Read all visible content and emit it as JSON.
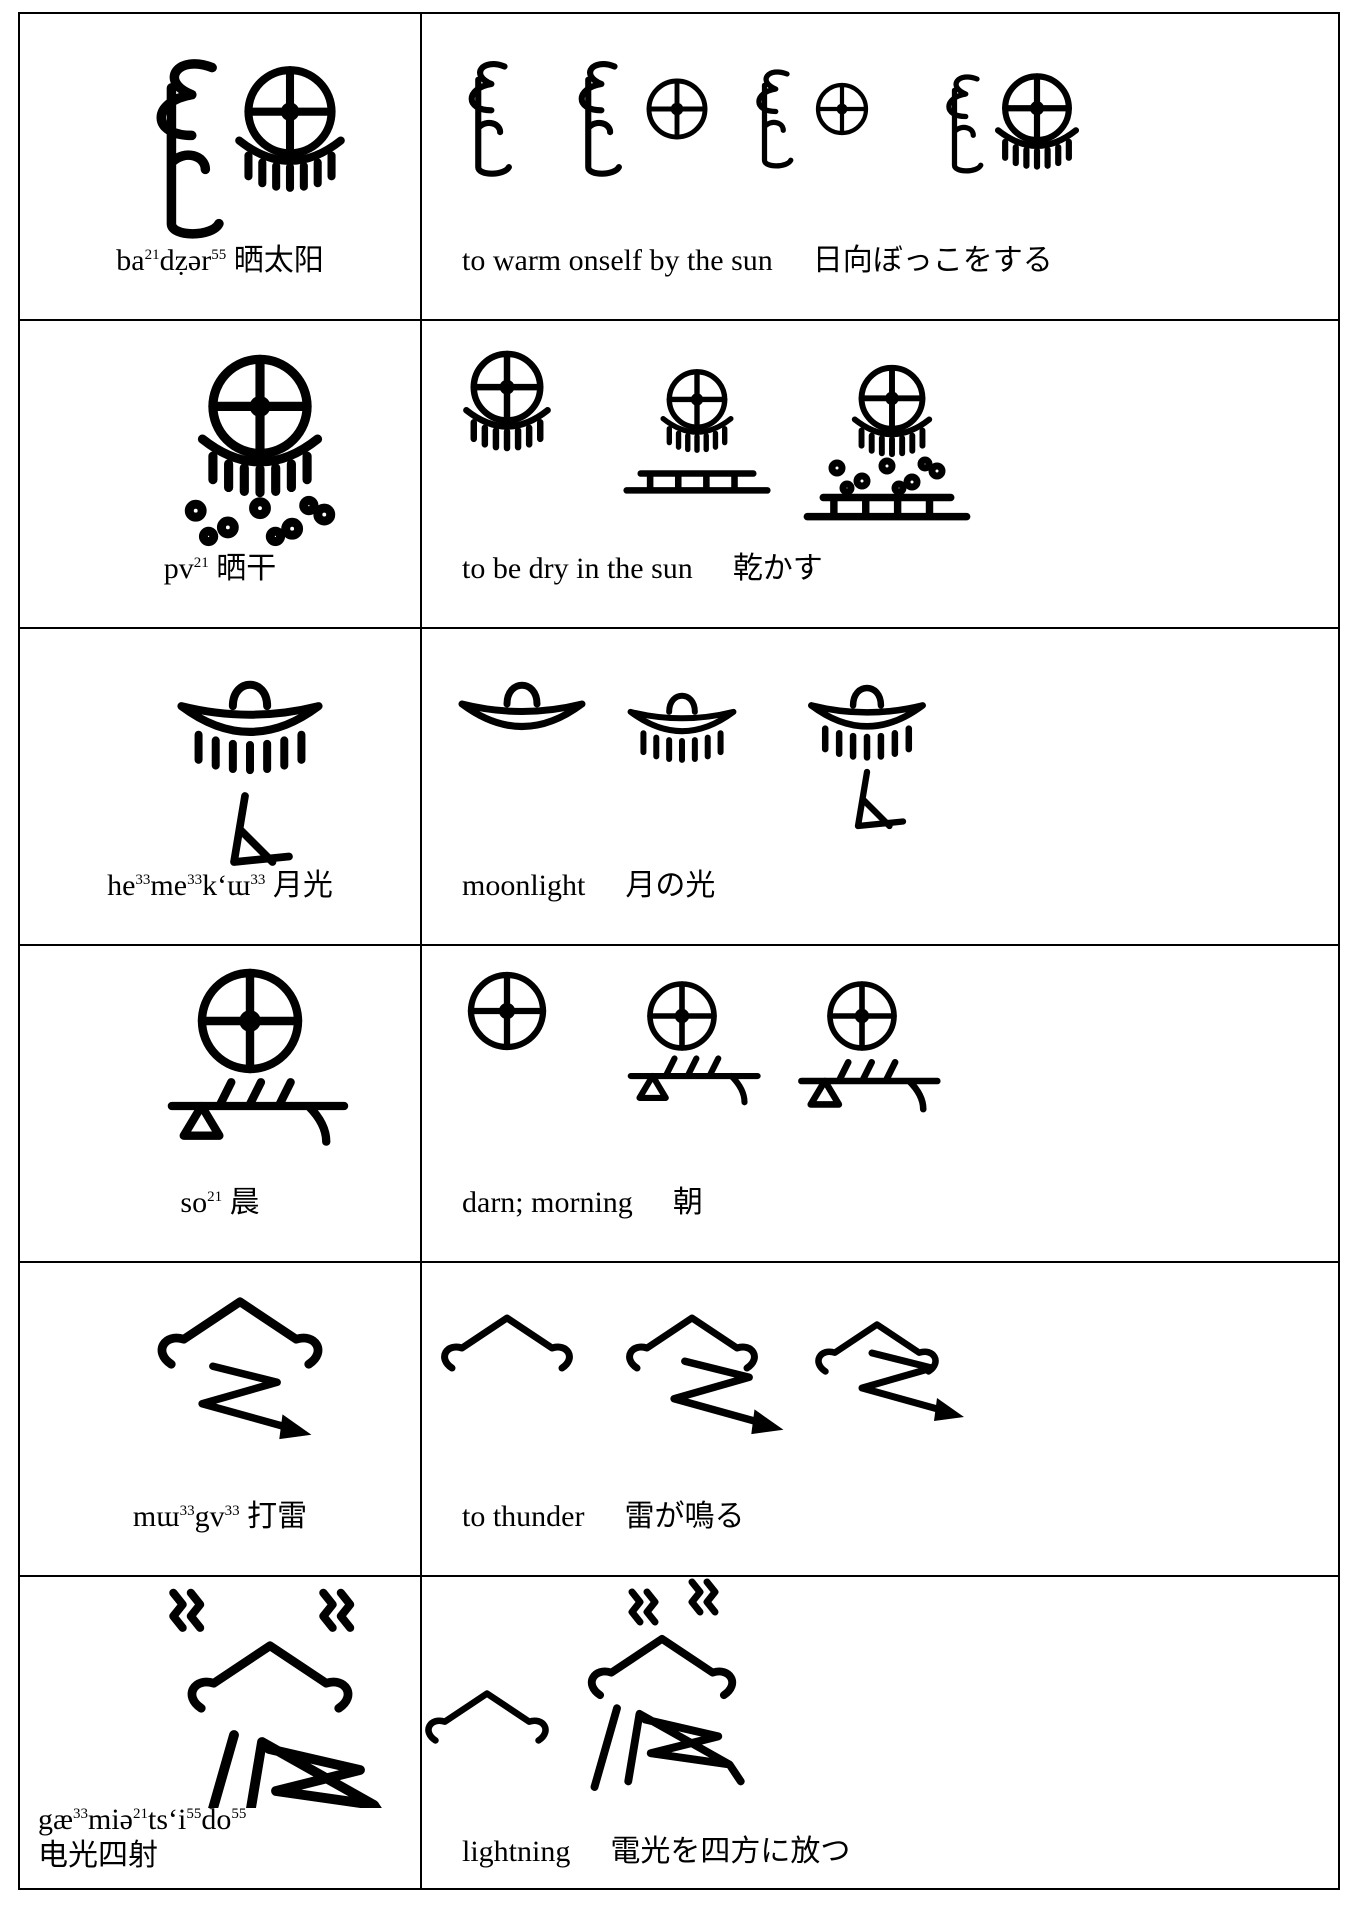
{
  "table": {
    "rows": [
      {
        "reading": [
          "ba",
          "21",
          "dẓər",
          "55"
        ],
        "chinese": "晒太阳",
        "gloss": "to warm onself by the sun",
        "japanese": "日向ぼっこをする"
      },
      {
        "reading": [
          "pv",
          "21"
        ],
        "chinese": "晒干",
        "gloss": "to be dry in the sun",
        "japanese": "乾かす"
      },
      {
        "reading": [
          "he",
          "33",
          "me",
          "33",
          "kʻɯ",
          "33"
        ],
        "chinese": "月光",
        "gloss": "moonlight",
        "japanese": "月の光"
      },
      {
        "reading": [
          "so",
          "21"
        ],
        "chinese": "晨",
        "gloss": "darn; morning",
        "japanese": "朝"
      },
      {
        "reading": [
          "mɯ",
          "33",
          "gv",
          "33"
        ],
        "chinese": "打雷",
        "gloss": "to thunder",
        "japanese": "雷が鳴る"
      },
      {
        "reading": [
          "gæ",
          "33",
          "miə",
          "21",
          "tsʻi",
          "55",
          "do",
          "55"
        ],
        "chinese": "电光四射",
        "gloss": "lightning",
        "japanese": "電光を四方に放つ"
      }
    ]
  }
}
